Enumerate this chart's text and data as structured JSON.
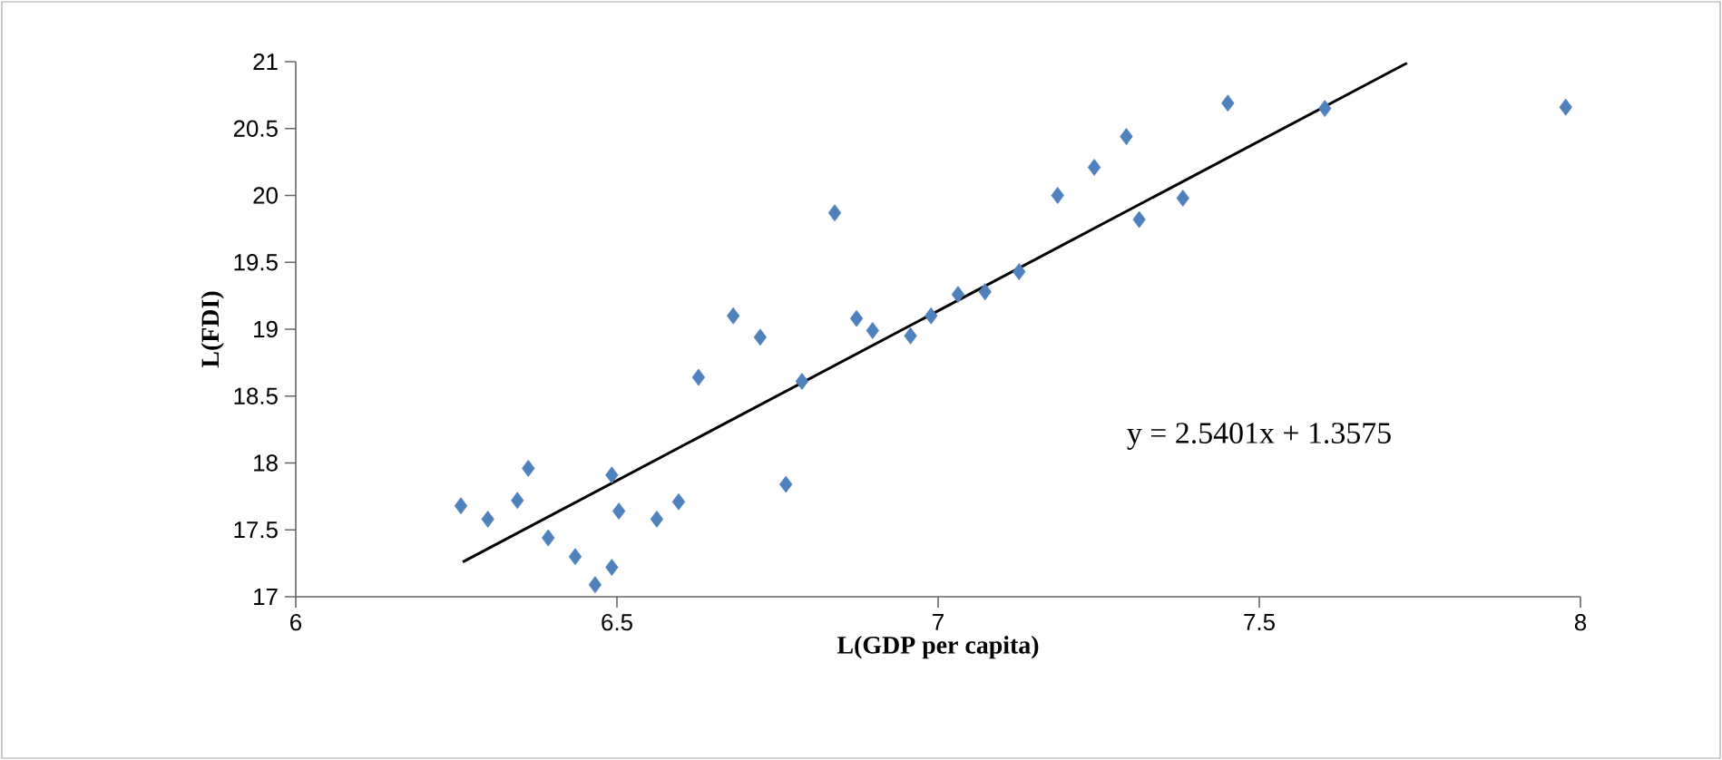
{
  "chart_data": {
    "type": "scatter",
    "xlabel": "L(GDP per capita)",
    "ylabel": "L(FDI)",
    "xlim": [
      6,
      8
    ],
    "ylim": [
      17,
      21
    ],
    "xticks": [
      6,
      6.5,
      7,
      7.5,
      8
    ],
    "yticks": [
      17,
      17.5,
      18,
      18.5,
      19,
      19.5,
      20,
      20.5,
      21
    ],
    "marker": "diamond",
    "grid": false,
    "annotations": [
      "y = 2.5401x + 1.3575"
    ],
    "series": [
      {
        "color": "#4f81bd",
        "x": [
          6.257,
          6.299,
          6.345,
          6.362,
          6.393,
          6.435,
          6.466,
          6.492,
          6.492,
          6.503,
          6.562,
          6.596,
          6.627,
          6.681,
          6.723,
          6.763,
          6.788,
          6.839,
          6.873,
          6.898,
          6.957,
          6.989,
          7.031,
          7.073,
          7.126,
          7.186,
          7.243,
          7.293,
          7.313,
          7.381,
          7.451,
          7.602,
          7.977
        ],
        "values": [
          17.68,
          17.58,
          17.72,
          17.96,
          17.44,
          17.3,
          17.09,
          17.22,
          17.91,
          17.64,
          17.58,
          17.71,
          18.64,
          19.1,
          18.94,
          17.84,
          18.61,
          19.87,
          19.08,
          18.99,
          18.95,
          19.1,
          19.26,
          19.28,
          19.43,
          20.0,
          20.21,
          20.44,
          19.82,
          19.98,
          20.69,
          20.65,
          20.66
        ]
      },
      {
        "type": "line",
        "color": "#000000",
        "marker": "none",
        "x": [
          6.26,
          7.73
        ],
        "values": [
          17.26,
          20.99
        ]
      }
    ]
  }
}
